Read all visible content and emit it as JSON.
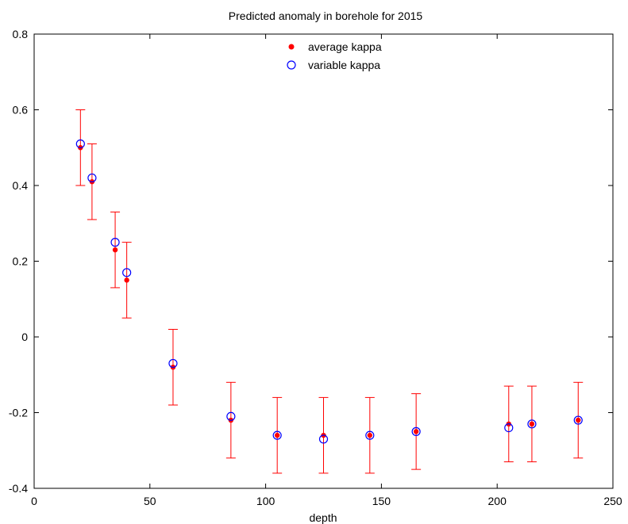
{
  "chart_data": {
    "type": "scatter",
    "title": "Predicted anomaly in borehole for 2015",
    "xlabel": "depth",
    "ylabel": "",
    "xlim": [
      0,
      250
    ],
    "ylim": [
      -0.4,
      0.8
    ],
    "x_ticks": [
      0,
      50,
      100,
      150,
      200,
      250
    ],
    "y_ticks": [
      -0.4,
      -0.2,
      0,
      0.2,
      0.4,
      0.6,
      0.8
    ],
    "x_tick_labels": [
      "0",
      "50",
      "100",
      "150",
      "200",
      "250"
    ],
    "y_tick_labels": [
      "-0.4",
      "-0.2",
      "0",
      "0.2",
      "0.4",
      "0.6",
      "0.8"
    ],
    "grid": false,
    "legend_position": "top-center",
    "x": [
      20,
      25,
      35,
      40,
      60,
      85,
      105,
      125,
      145,
      165,
      205,
      215,
      235
    ],
    "series": [
      {
        "name": "average kappa",
        "marker": "filled-dot",
        "color": "#ff0000",
        "values": [
          0.5,
          0.41,
          0.23,
          0.15,
          -0.08,
          -0.22,
          -0.26,
          -0.26,
          -0.26,
          -0.25,
          -0.23,
          -0.23,
          -0.22
        ],
        "error": [
          0.1,
          0.1,
          0.1,
          0.1,
          0.1,
          0.1,
          0.1,
          0.1,
          0.1,
          0.1,
          0.1,
          0.1,
          0.1
        ]
      },
      {
        "name": "variable kappa",
        "marker": "open-circle",
        "color": "#0000ff",
        "values": [
          0.51,
          0.42,
          0.25,
          0.17,
          -0.07,
          -0.21,
          -0.26,
          -0.27,
          -0.26,
          -0.25,
          -0.24,
          -0.23,
          -0.22
        ]
      }
    ]
  }
}
